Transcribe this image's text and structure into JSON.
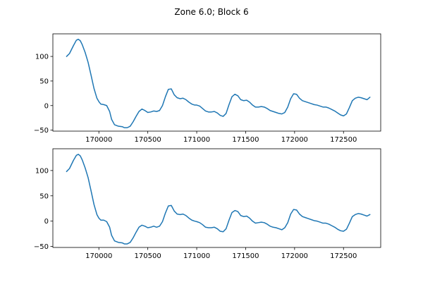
{
  "title": "Zone 6.0; Block 6",
  "colors": {
    "series": "#1f77b4",
    "axes": "#000000",
    "background": "#ffffff"
  },
  "chart_data": [
    {
      "type": "line",
      "title": "",
      "xlabel": "",
      "ylabel": "",
      "xlim": [
        169530,
        172880
      ],
      "ylim": [
        -52,
        146
      ],
      "xticks": [
        170000,
        170500,
        171000,
        171500,
        172000,
        172500
      ],
      "yticks": [
        -50,
        0,
        50,
        100
      ],
      "grid": false,
      "legend": "none",
      "series": [
        {
          "x": [
            169670,
            169700,
            169740,
            169770,
            169790,
            169810,
            169830,
            169860,
            169890,
            169920,
            169950,
            169980,
            170000,
            170020,
            170050,
            170080,
            170110,
            170130,
            170160,
            170200,
            170240,
            170260,
            170290,
            170320,
            170350,
            170380,
            170410,
            170440,
            170470,
            170500,
            170530,
            170560,
            170590,
            170620,
            170650,
            170680,
            170710,
            170740,
            170770,
            170800,
            170830,
            170860,
            170890,
            170920,
            170950,
            170980,
            171000,
            171030,
            171060,
            171090,
            171120,
            171150,
            171180,
            171210,
            171240,
            171270,
            171300,
            171330,
            171360,
            171390,
            171420,
            171450,
            171480,
            171510,
            171540,
            171570,
            171600,
            171630,
            171660,
            171690,
            171720,
            171750,
            171780,
            171810,
            171840,
            171870,
            171900,
            171930,
            171960,
            171990,
            172020,
            172050,
            172080,
            172110,
            172140,
            172170,
            172200,
            172230,
            172260,
            172290,
            172320,
            172350,
            172380,
            172410,
            172440,
            172470,
            172500,
            172530,
            172560,
            172590,
            172620,
            172650,
            172680,
            172710,
            172740,
            172770
          ],
          "values": [
            100,
            106,
            122,
            133,
            135,
            132,
            124,
            108,
            88,
            62,
            35,
            15,
            8,
            3,
            2,
            0,
            -12,
            -28,
            -39,
            -42,
            -43,
            -45,
            -45,
            -42,
            -33,
            -22,
            -12,
            -7,
            -10,
            -14,
            -13,
            -11,
            -12,
            -10,
            0,
            18,
            33,
            34,
            22,
            16,
            14,
            15,
            12,
            7,
            3,
            1,
            1,
            -1,
            -6,
            -11,
            -13,
            -13,
            -12,
            -15,
            -20,
            -22,
            -16,
            2,
            18,
            23,
            20,
            12,
            10,
            11,
            7,
            1,
            -3,
            -3,
            -2,
            -3,
            -6,
            -10,
            -12,
            -14,
            -16,
            -17,
            -14,
            -3,
            14,
            24,
            23,
            15,
            10,
            8,
            6,
            4,
            2,
            1,
            -1,
            -3,
            -3,
            -5,
            -8,
            -11,
            -15,
            -19,
            -21,
            -17,
            -4,
            10,
            15,
            17,
            16,
            14,
            12,
            17
          ]
        }
      ]
    },
    {
      "type": "line",
      "title": "",
      "xlabel": "",
      "ylabel": "",
      "xlim": [
        169530,
        172880
      ],
      "ylim": [
        -52,
        143
      ],
      "xticks": [
        170000,
        170500,
        171000,
        171500,
        172000,
        172500
      ],
      "yticks": [
        -50,
        0,
        50,
        100
      ],
      "grid": false,
      "legend": "none",
      "series": [
        {
          "x": [
            169670,
            169700,
            169740,
            169770,
            169790,
            169810,
            169830,
            169860,
            169890,
            169920,
            169950,
            169980,
            170000,
            170020,
            170050,
            170080,
            170110,
            170130,
            170160,
            170200,
            170240,
            170260,
            170290,
            170320,
            170350,
            170380,
            170410,
            170440,
            170470,
            170500,
            170530,
            170560,
            170590,
            170620,
            170650,
            170680,
            170710,
            170740,
            170770,
            170800,
            170830,
            170860,
            170890,
            170920,
            170950,
            170980,
            171000,
            171030,
            171060,
            171090,
            171120,
            171150,
            171180,
            171210,
            171240,
            171270,
            171300,
            171330,
            171360,
            171390,
            171420,
            171450,
            171480,
            171510,
            171540,
            171570,
            171600,
            171630,
            171660,
            171690,
            171720,
            171750,
            171780,
            171810,
            171840,
            171870,
            171900,
            171930,
            171960,
            171990,
            172020,
            172050,
            172080,
            172110,
            172140,
            172170,
            172200,
            172230,
            172260,
            172290,
            172320,
            172350,
            172380,
            172410,
            172440,
            172470,
            172500,
            172530,
            172560,
            172590,
            172620,
            172650,
            172680,
            172710,
            172740,
            172770
          ],
          "values": [
            98,
            104,
            120,
            130,
            132,
            129,
            121,
            105,
            86,
            60,
            33,
            13,
            6,
            2,
            2,
            -1,
            -12,
            -28,
            -39,
            -42,
            -43,
            -45,
            -45,
            -42,
            -33,
            -22,
            -12,
            -8,
            -10,
            -13,
            -12,
            -10,
            -12,
            -10,
            -1,
            16,
            30,
            31,
            20,
            14,
            13,
            14,
            11,
            6,
            2,
            0,
            -1,
            -3,
            -7,
            -12,
            -13,
            -13,
            -12,
            -15,
            -20,
            -21,
            -15,
            2,
            17,
            21,
            19,
            11,
            9,
            10,
            6,
            0,
            -4,
            -3,
            -2,
            -3,
            -6,
            -10,
            -12,
            -13,
            -15,
            -17,
            -13,
            -3,
            14,
            23,
            22,
            14,
            9,
            7,
            5,
            3,
            1,
            0,
            -2,
            -4,
            -4,
            -6,
            -9,
            -12,
            -16,
            -19,
            -20,
            -16,
            -4,
            9,
            13,
            15,
            14,
            12,
            10,
            13
          ]
        }
      ]
    }
  ]
}
